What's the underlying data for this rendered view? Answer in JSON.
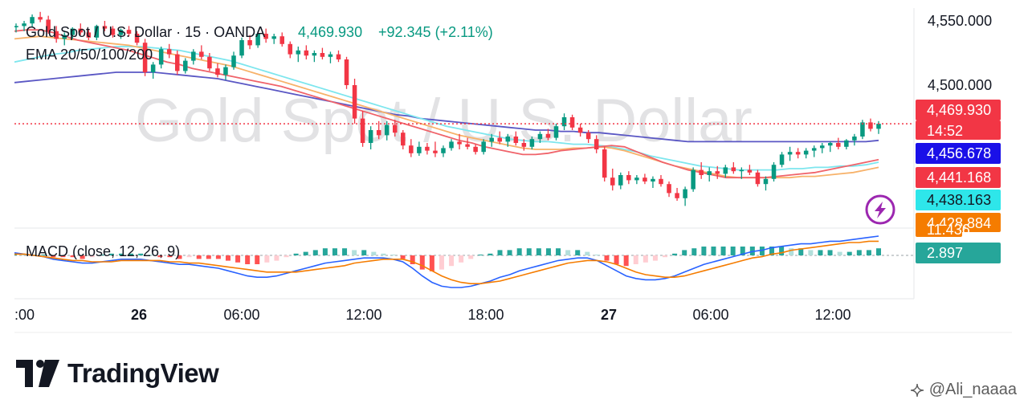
{
  "chart_data": {
    "type": "candlestick",
    "symbol_title": "Gold Spot / U.S. Dollar · 15 · OANDA",
    "last_price": "4,469.930",
    "change": "+92.345 (+2.11%)",
    "indicator_ema": "EMA 20/50/100/200",
    "indicator_macd": "MACD (close, 12, 26, 9)",
    "watermark": "Gold Spot / U.S. Dollar",
    "price_ticks": [
      "4,550.000",
      "4,500.000"
    ],
    "price_tick_values": [
      4550,
      4500
    ],
    "time_ticks": [
      {
        "label": ":00",
        "bold": false
      },
      {
        "label": "26",
        "bold": true
      },
      {
        "label": "06:00",
        "bold": false
      },
      {
        "label": "12:00",
        "bold": false
      },
      {
        "label": "18:00",
        "bold": false
      },
      {
        "label": "27",
        "bold": true
      },
      {
        "label": "06:00",
        "bold": false
      },
      {
        "label": "12:00",
        "bold": false
      }
    ],
    "badges": [
      {
        "text": "4,469.930",
        "bg": "#f23645",
        "fg": "#ffffff",
        "value": 4469.93
      },
      {
        "text": "14:52",
        "bg": "#f23645",
        "fg": "#ffffff"
      },
      {
        "text": "4,456.678",
        "bg": "#1a10e8",
        "fg": "#ffffff",
        "value": 4456.678
      },
      {
        "text": "4,441.168",
        "bg": "#f23645",
        "fg": "#ffffff",
        "value": 4441.168
      },
      {
        "text": "4,438.163",
        "bg": "#2ee6ea",
        "fg": "#131722",
        "value": 4438.163
      },
      {
        "text": "4,428.884",
        "bg": "#f57c00",
        "fg": "#ffffff",
        "value": 4428.884
      },
      {
        "text": "11.436",
        "bg": "#f57c00",
        "fg": "#ffffff"
      },
      {
        "text": "2.897",
        "bg": "#26a69a",
        "fg": "#ffffff"
      }
    ],
    "ema_colors": {
      "ema20": "#f0636a",
      "ema50": "#f7b26a",
      "ema100": "#7de6ee",
      "ema200": "#5a57c4"
    },
    "up_color": "#089981",
    "down_color": "#f23645",
    "macd_colors": {
      "macd": "#2962ff",
      "signal": "#f57c00"
    },
    "ohlc": [
      [
        4545,
        4548,
        4541,
        4546
      ],
      [
        4546,
        4550,
        4542,
        4548
      ],
      [
        4548,
        4555,
        4545,
        4553
      ],
      [
        4553,
        4557,
        4549,
        4551
      ],
      [
        4551,
        4554,
        4540,
        4542
      ],
      [
        4542,
        4546,
        4533,
        4536
      ],
      [
        4536,
        4541,
        4531,
        4539
      ],
      [
        4539,
        4545,
        4536,
        4544
      ],
      [
        4544,
        4548,
        4539,
        4541
      ],
      [
        4541,
        4543,
        4535,
        4537
      ],
      [
        4537,
        4547,
        4535,
        4546
      ],
      [
        4546,
        4550,
        4542,
        4544
      ],
      [
        4544,
        4546,
        4537,
        4539
      ],
      [
        4539,
        4544,
        4536,
        4543
      ],
      [
        4543,
        4546,
        4538,
        4540
      ],
      [
        4540,
        4542,
        4531,
        4533
      ],
      [
        4533,
        4536,
        4507,
        4510
      ],
      [
        4510,
        4518,
        4505,
        4516
      ],
      [
        4516,
        4530,
        4513,
        4528
      ],
      [
        4528,
        4532,
        4521,
        4524
      ],
      [
        4524,
        4527,
        4508,
        4511
      ],
      [
        4511,
        4521,
        4509,
        4519
      ],
      [
        4519,
        4528,
        4516,
        4526
      ],
      [
        4526,
        4531,
        4520,
        4522
      ],
      [
        4522,
        4525,
        4511,
        4513
      ],
      [
        4513,
        4517,
        4506,
        4508
      ],
      [
        4508,
        4516,
        4504,
        4514
      ],
      [
        4514,
        4526,
        4512,
        4523
      ],
      [
        4523,
        4537,
        4521,
        4535
      ],
      [
        4535,
        4539,
        4528,
        4531
      ],
      [
        4531,
        4542,
        4529,
        4540
      ],
      [
        4540,
        4544,
        4533,
        4536
      ],
      [
        4536,
        4540,
        4532,
        4538
      ],
      [
        4538,
        4541,
        4530,
        4532
      ],
      [
        4532,
        4534,
        4521,
        4524
      ],
      [
        4524,
        4530,
        4518,
        4527
      ],
      [
        4527,
        4531,
        4520,
        4523
      ],
      [
        4523,
        4527,
        4518,
        4525
      ],
      [
        4525,
        4529,
        4520,
        4522
      ],
      [
        4522,
        4526,
        4517,
        4524
      ],
      [
        4524,
        4527,
        4518,
        4520
      ],
      [
        4520,
        4522,
        4497,
        4500
      ],
      [
        4500,
        4505,
        4470,
        4474
      ],
      [
        4474,
        4480,
        4452,
        4455
      ],
      [
        4455,
        4468,
        4450,
        4465
      ],
      [
        4465,
        4472,
        4458,
        4461
      ],
      [
        4461,
        4472,
        4457,
        4469
      ],
      [
        4469,
        4473,
        4460,
        4463
      ],
      [
        4463,
        4465,
        4450,
        4453
      ],
      [
        4453,
        4458,
        4444,
        4447
      ],
      [
        4447,
        4456,
        4445,
        4452
      ],
      [
        4452,
        4455,
        4446,
        4449
      ],
      [
        4449,
        4456,
        4444,
        4447
      ],
      [
        4447,
        4453,
        4444,
        4451
      ],
      [
        4451,
        4458,
        4449,
        4456
      ],
      [
        4456,
        4462,
        4450,
        4454
      ],
      [
        4454,
        4459,
        4450,
        4452
      ],
      [
        4452,
        4454,
        4446,
        4448
      ],
      [
        4448,
        4458,
        4446,
        4456
      ],
      [
        4456,
        4462,
        4452,
        4459
      ],
      [
        4459,
        4464,
        4454,
        4456
      ],
      [
        4456,
        4462,
        4452,
        4460
      ],
      [
        4460,
        4464,
        4453,
        4455
      ],
      [
        4455,
        4458,
        4449,
        4452
      ],
      [
        4452,
        4460,
        4450,
        4458
      ],
      [
        4458,
        4464,
        4455,
        4462
      ],
      [
        4462,
        4466,
        4457,
        4459
      ],
      [
        4459,
        4470,
        4457,
        4468
      ],
      [
        4468,
        4478,
        4465,
        4475
      ],
      [
        4475,
        4477,
        4465,
        4467
      ],
      [
        4467,
        4470,
        4460,
        4463
      ],
      [
        4463,
        4465,
        4455,
        4458
      ],
      [
        4458,
        4461,
        4447,
        4450
      ],
      [
        4450,
        4452,
        4425,
        4428
      ],
      [
        4428,
        4435,
        4418,
        4422
      ],
      [
        4422,
        4432,
        4419,
        4430
      ],
      [
        4430,
        4433,
        4423,
        4426
      ],
      [
        4426,
        4430,
        4423,
        4428
      ],
      [
        4428,
        4431,
        4423,
        4425
      ],
      [
        4425,
        4429,
        4420,
        4427
      ],
      [
        4427,
        4430,
        4421,
        4423
      ],
      [
        4423,
        4425,
        4413,
        4416
      ],
      [
        4416,
        4420,
        4410,
        4412
      ],
      [
        4412,
        4421,
        4406,
        4419
      ],
      [
        4419,
        4436,
        4417,
        4434
      ],
      [
        4434,
        4440,
        4427,
        4430
      ],
      [
        4430,
        4436,
        4425,
        4433
      ],
      [
        4433,
        4437,
        4427,
        4431
      ],
      [
        4431,
        4438,
        4428,
        4436
      ],
      [
        4436,
        4440,
        4431,
        4433
      ],
      [
        4433,
        4436,
        4427,
        4434
      ],
      [
        4434,
        4438,
        4430,
        4432
      ],
      [
        4432,
        4434,
        4421,
        4423
      ],
      [
        4423,
        4429,
        4418,
        4427
      ],
      [
        4427,
        4440,
        4425,
        4438
      ],
      [
        4438,
        4448,
        4436,
        4446
      ],
      [
        4446,
        4452,
        4441,
        4448
      ],
      [
        4448,
        4451,
        4443,
        4446
      ],
      [
        4446,
        4451,
        4443,
        4449
      ],
      [
        4449,
        4453,
        4444,
        4451
      ],
      [
        4451,
        4455,
        4447,
        4453
      ],
      [
        4453,
        4456,
        4448,
        4455
      ],
      [
        4455,
        4459,
        4450,
        4452
      ],
      [
        4452,
        4458,
        4450,
        4457
      ],
      [
        4457,
        4462,
        4453,
        4460
      ],
      [
        4460,
        4473,
        4458,
        4471
      ],
      [
        4471,
        4474,
        4464,
        4466
      ],
      [
        4466,
        4472,
        4462,
        4469.93
      ]
    ],
    "ema20": [
      4542,
      4543,
      4543,
      4541,
      4538,
      4535,
      4533,
      4531,
      4529,
      4527,
      4524,
      4521,
      4518,
      4516,
      4513,
      4511,
      4509,
      4507,
      4505,
      4503,
      4501,
      4499,
      4496,
      4493,
      4490,
      4487,
      4484,
      4481,
      4478,
      4475,
      4472,
      4469,
      4466,
      4463,
      4460,
      4457,
      4455,
      4452,
      4450,
      4448,
      4446,
      4446,
      4447,
      4449,
      4450,
      4451,
      4452,
      4453,
      4452,
      4448,
      4444,
      4440,
      4437,
      4434,
      4432,
      4430,
      4428,
      4428,
      4428,
      4428,
      4429,
      4430,
      4431,
      4432,
      4434,
      4436,
      4438,
      4440,
      4442
    ],
    "ema50": [
      4536,
      4537,
      4538,
      4537,
      4536,
      4535,
      4534,
      4533,
      4532,
      4531,
      4529,
      4527,
      4525,
      4523,
      4521,
      4519,
      4517,
      4515,
      4512,
      4509,
      4506,
      4503,
      4500,
      4497,
      4494,
      4491,
      4488,
      4485,
      4482,
      4479,
      4476,
      4473,
      4470,
      4467,
      4464,
      4461,
      4459,
      4457,
      4455,
      4453,
      4451,
      4450,
      4450,
      4450,
      4451,
      4451,
      4452,
      4451,
      4449,
      4446,
      4443,
      4440,
      4437,
      4435,
      4433,
      4431,
      4429,
      4428,
      4428,
      4428,
      4428,
      4428,
      4429,
      4429,
      4430,
      4431,
      4432,
      4434,
      4436
    ],
    "ema100": [
      4518,
      4520,
      4522,
      4524,
      4525,
      4527,
      4528,
      4529,
      4530,
      4530,
      4530,
      4529,
      4528,
      4527,
      4525,
      4523,
      4521,
      4519,
      4516,
      4513,
      4510,
      4507,
      4504,
      4501,
      4498,
      4495,
      4492,
      4489,
      4486,
      4483,
      4480,
      4477,
      4474,
      4471,
      4468,
      4466,
      4464,
      4462,
      4460,
      4458,
      4457,
      4456,
      4456,
      4455,
      4454,
      4454,
      4453,
      4452,
      4450,
      4448,
      4445,
      4443,
      4441,
      4439,
      4437,
      4436,
      4435,
      4434,
      4434,
      4434,
      4434,
      4435,
      4435,
      4436,
      4436,
      4437,
      4437,
      4438,
      4440
    ],
    "ema200": [
      4502,
      4503,
      4504,
      4505,
      4506,
      4507,
      4508,
      4509,
      4510,
      4510,
      4510,
      4510,
      4509,
      4508,
      4507,
      4506,
      4505,
      4503,
      4501,
      4499,
      4497,
      4495,
      4493,
      4491,
      4489,
      4487,
      4485,
      4483,
      4481,
      4479,
      4477,
      4476,
      4474,
      4473,
      4472,
      4471,
      4470,
      4469,
      4468,
      4467,
      4466,
      4465,
      4465,
      4464,
      4464,
      4463,
      4463,
      4462,
      4461,
      4460,
      4459,
      4458,
      4457,
      4456,
      4456,
      4456,
      4456,
      4456,
      4456,
      4456,
      4456,
      4456,
      4456,
      4456,
      4456,
      4456,
      4456,
      4456,
      4457
    ],
    "macd": [
      2,
      1,
      0,
      -1,
      -3,
      -4,
      -5,
      -6,
      -6,
      -5,
      -4,
      -3,
      -3,
      -3,
      -4,
      -5,
      -6,
      -7,
      -7,
      -8,
      -9,
      -10,
      -12,
      -14,
      -16,
      -17,
      -17,
      -16,
      -14,
      -12,
      -10,
      -8,
      -6,
      -5,
      -4,
      -3,
      -2,
      -2,
      -2,
      -3,
      -5,
      -10,
      -16,
      -21,
      -24,
      -25,
      -25,
      -24,
      -22,
      -20,
      -17,
      -15,
      -12,
      -10,
      -8,
      -6,
      -4,
      -3,
      -2,
      -2,
      -4,
      -8,
      -12,
      -16,
      -18,
      -19,
      -19,
      -18,
      -16,
      -13,
      -10,
      -7,
      -5,
      -3,
      -1,
      1,
      3,
      4,
      6,
      7,
      8,
      9,
      9,
      10,
      11,
      11,
      12,
      13,
      14,
      15
    ],
    "signal": [
      1,
      1,
      0,
      -1,
      -2,
      -3,
      -4,
      -4,
      -5,
      -5,
      -5,
      -4,
      -4,
      -4,
      -4,
      -4,
      -5,
      -5,
      -6,
      -6,
      -7,
      -8,
      -9,
      -10,
      -11,
      -12,
      -13,
      -13,
      -13,
      -13,
      -12,
      -11,
      -10,
      -9,
      -8,
      -6,
      -5,
      -4,
      -3,
      -3,
      -3,
      -5,
      -8,
      -12,
      -16,
      -19,
      -21,
      -22,
      -22,
      -21,
      -20,
      -18,
      -16,
      -14,
      -12,
      -10,
      -8,
      -6,
      -5,
      -4,
      -4,
      -5,
      -7,
      -10,
      -13,
      -15,
      -16,
      -17,
      -17,
      -16,
      -14,
      -12,
      -10,
      -8,
      -6,
      -4,
      -2,
      -1,
      1,
      2,
      4,
      5,
      6,
      7,
      8,
      9,
      10,
      10,
      11,
      11
    ],
    "price_range": [
      4390,
      4560
    ]
  },
  "brand": {
    "name": "TradingView"
  },
  "author": {
    "handle": "@Ali_naaaa"
  }
}
